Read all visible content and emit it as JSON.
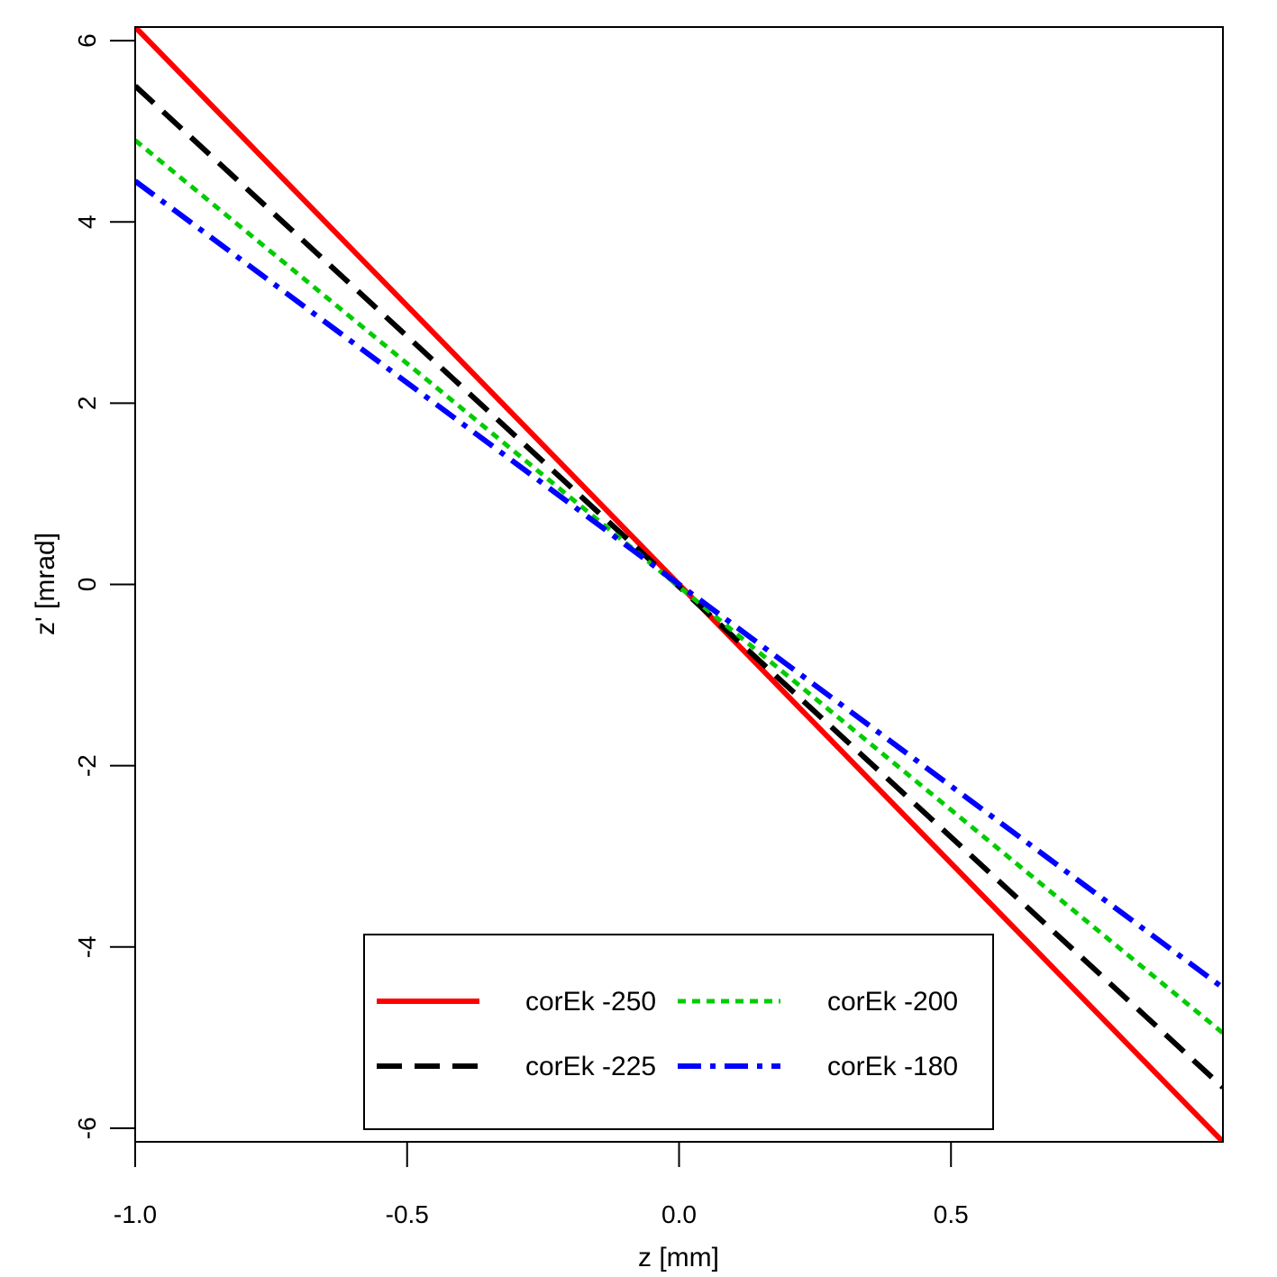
{
  "chart_data": {
    "type": "line",
    "title": "",
    "xlabel": "z [mm]",
    "ylabel": "z' [mrad]",
    "xlim": [
      -1.0,
      1.0
    ],
    "ylim": [
      -6.15,
      6.15
    ],
    "x_ticks": [
      {
        "value": -1.0,
        "label": "-1.0"
      },
      {
        "value": -0.5,
        "label": "-0.5"
      },
      {
        "value": 0.0,
        "label": "0.0"
      },
      {
        "value": 0.5,
        "label": "0.5"
      }
    ],
    "y_ticks": [
      {
        "value": -6,
        "label": "-6"
      },
      {
        "value": -4,
        "label": "-4"
      },
      {
        "value": -2,
        "label": "-2"
      },
      {
        "value": 0,
        "label": "0"
      },
      {
        "value": 2,
        "label": "2"
      },
      {
        "value": 4,
        "label": "4"
      },
      {
        "value": 6,
        "label": "6"
      }
    ],
    "grid": false,
    "legend_position": "bottom-center",
    "series": [
      {
        "name": "corEk -250",
        "color": "#ff0000",
        "style": "solid",
        "x": [
          -1.0,
          1.0
        ],
        "y": [
          6.15,
          -6.15
        ]
      },
      {
        "name": "corEk -225",
        "color": "#000000",
        "style": "dashed",
        "x": [
          -1.0,
          1.0
        ],
        "y": [
          5.5,
          -5.55
        ]
      },
      {
        "name": "corEk -200",
        "color": "#00cc00",
        "style": "dotted",
        "x": [
          -1.0,
          1.0
        ],
        "y": [
          4.9,
          -4.95
        ]
      },
      {
        "name": "corEk -180",
        "color": "#0000ff",
        "style": "dashdot",
        "x": [
          -1.0,
          1.0
        ],
        "y": [
          4.45,
          -4.45
        ]
      }
    ]
  }
}
